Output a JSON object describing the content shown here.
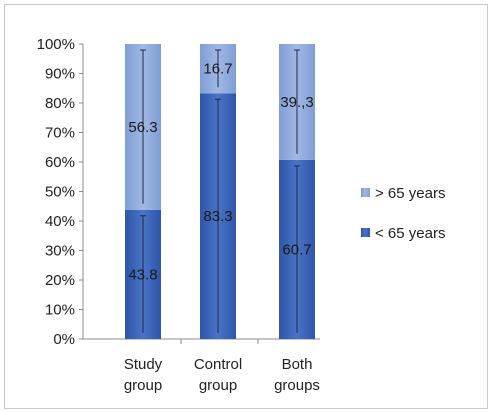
{
  "chart_data": {
    "type": "bar",
    "stacked": true,
    "percent": true,
    "categories": [
      [
        "Study",
        "group"
      ],
      [
        "Control",
        "group"
      ],
      [
        "Both",
        "groups"
      ]
    ],
    "series": [
      {
        "name": "< 65 years",
        "values": [
          43.8,
          83.3,
          60.7
        ],
        "labels": [
          "43.8",
          "83.3",
          "60.7"
        ],
        "color": "#3a62b4"
      },
      {
        "name": "> 65 years",
        "values": [
          56.3,
          16.7,
          39.3
        ],
        "labels": [
          "56.3",
          "16.7",
          "39.,3"
        ],
        "color": "#8ea9dc"
      }
    ],
    "yticks": [
      "0%",
      "10%",
      "20%",
      "30%",
      "40%",
      "50%",
      "60%",
      "70%",
      "80%",
      "90%",
      "100%"
    ],
    "ylim": [
      0,
      100
    ],
    "legend_position": "right",
    "legend_order": [
      "> 65 years",
      "< 65 years"
    ],
    "grid": false
  }
}
